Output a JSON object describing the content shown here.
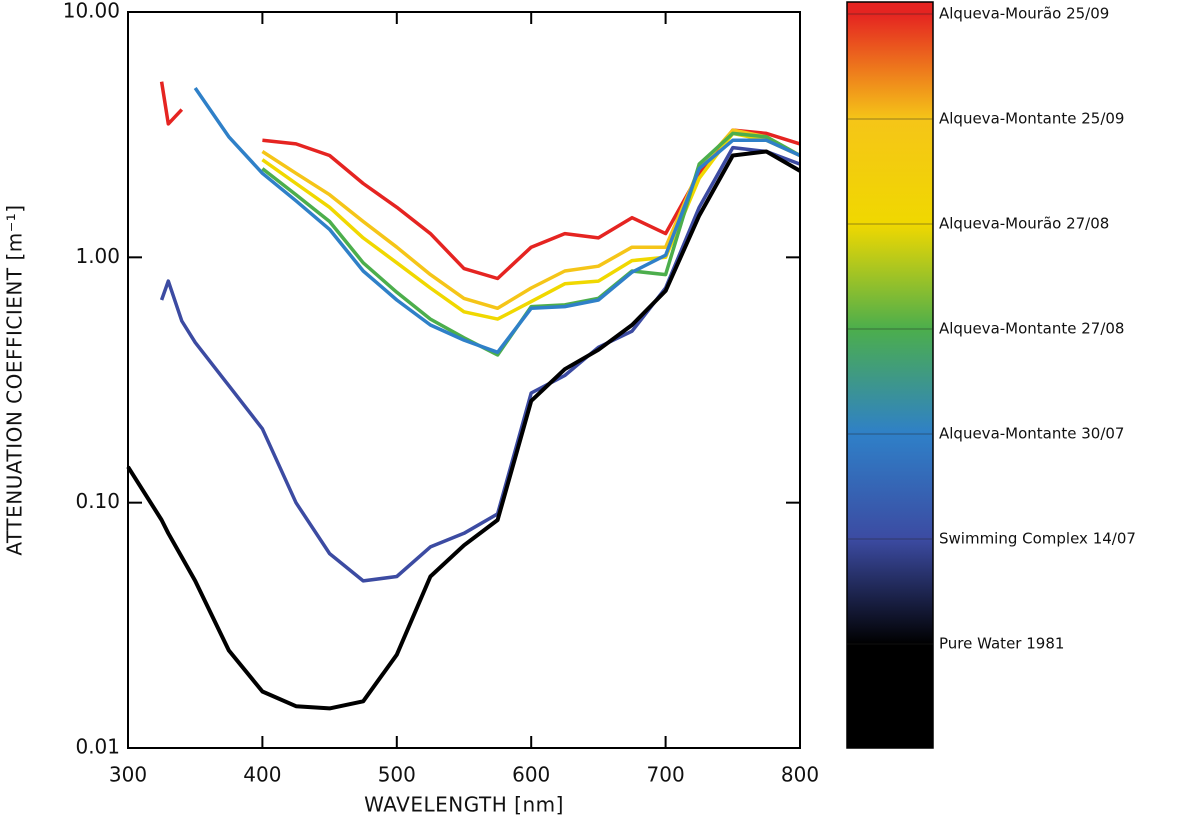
{
  "chart_data": {
    "type": "line",
    "x_label": "WAVELENGTH [nm]",
    "y_label": "ATTENUATION COEFFICIENT [m⁻¹]",
    "log_y": true,
    "legend": "colorbar-right",
    "x": [
      300,
      325,
      330,
      340,
      350,
      375,
      400,
      425,
      450,
      475,
      500,
      525,
      550,
      575,
      600,
      625,
      650,
      675,
      700,
      725,
      750,
      775,
      800
    ],
    "xlim": [
      300,
      800
    ],
    "xticks": [
      300,
      400,
      500,
      600,
      700,
      800
    ],
    "ylim": [
      0.01,
      10
    ],
    "yticks": [
      {
        "value": 0.01,
        "label": "0.01"
      },
      {
        "value": 0.1,
        "label": "0.10"
      },
      {
        "value": 1,
        "label": "1.00"
      },
      {
        "value": 10,
        "label": "10.00"
      }
    ],
    "series": [
      {
        "name": "Alqueva-Mourão 25/09",
        "color": "#e52421",
        "values": [
          null,
          5.2,
          3.5,
          4.0,
          null,
          null,
          3.0,
          2.9,
          2.6,
          2.0,
          1.6,
          1.25,
          0.9,
          0.82,
          1.1,
          1.25,
          1.2,
          1.45,
          1.25,
          2.2,
          3.3,
          3.2,
          2.9
        ]
      },
      {
        "name": "Alqueva-Montante 25/09",
        "color": "#f5c518",
        "values": [
          null,
          null,
          null,
          null,
          null,
          null,
          2.7,
          2.2,
          1.8,
          1.4,
          1.1,
          0.85,
          0.68,
          0.62,
          0.75,
          0.88,
          0.92,
          1.1,
          1.1,
          2.3,
          3.3,
          3.1,
          2.6
        ]
      },
      {
        "name": "Alqueva-Mourão 27/08",
        "color": "#f0d800",
        "values": [
          null,
          null,
          null,
          null,
          null,
          null,
          2.5,
          2.0,
          1.6,
          1.2,
          0.95,
          0.75,
          0.6,
          0.56,
          0.66,
          0.78,
          0.8,
          0.97,
          1.0,
          2.1,
          3.2,
          3.0,
          2.6
        ]
      },
      {
        "name": "Alqueva-Montante 27/08",
        "color": "#4cae4c",
        "values": [
          null,
          null,
          null,
          null,
          null,
          null,
          2.3,
          1.8,
          1.4,
          0.95,
          0.72,
          0.56,
          0.47,
          0.4,
          0.63,
          0.64,
          0.68,
          0.88,
          0.85,
          2.4,
          3.2,
          3.1,
          2.6
        ]
      },
      {
        "name": "Alqueva-Montante 30/07",
        "color": "#2f80c8",
        "values": [
          null,
          null,
          null,
          null,
          4.9,
          3.1,
          2.2,
          1.7,
          1.3,
          0.88,
          0.67,
          0.53,
          0.46,
          0.41,
          0.62,
          0.63,
          0.67,
          0.87,
          1.02,
          2.3,
          3.0,
          3.0,
          2.6
        ]
      },
      {
        "name": "Swimming Complex 14/07",
        "color": "#3c4ba2",
        "values": [
          null,
          0.67,
          0.8,
          0.55,
          0.45,
          0.3,
          0.2,
          0.1,
          0.062,
          0.048,
          0.05,
          0.066,
          0.075,
          0.09,
          0.28,
          0.33,
          0.43,
          0.5,
          0.75,
          1.6,
          2.8,
          2.7,
          2.4
        ]
      },
      {
        "name": "Pure Water 1981",
        "color": "#000000",
        "values": [
          0.14,
          0.085,
          0.075,
          0.06,
          0.048,
          0.025,
          0.017,
          0.0148,
          0.0145,
          0.0155,
          0.024,
          0.05,
          0.067,
          0.085,
          0.26,
          0.35,
          0.42,
          0.53,
          0.73,
          1.48,
          2.6,
          2.7,
          2.25
        ]
      }
    ]
  }
}
